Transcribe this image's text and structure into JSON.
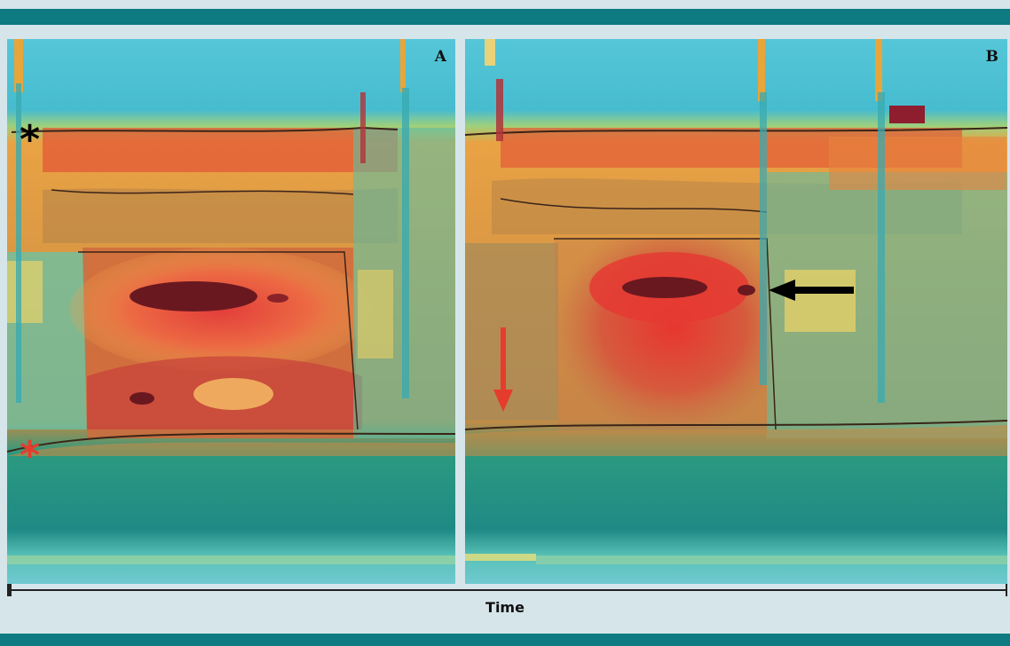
{
  "panels": [
    {
      "id": "A",
      "label": "A"
    },
    {
      "id": "B",
      "label": "B"
    }
  ],
  "axis": {
    "label": "Time"
  },
  "annotations": {
    "asterisk_black": "*",
    "asterisk_red": "*"
  },
  "colors": {
    "band": "#0e7a82",
    "background": "#d6e5ea",
    "cyan_top": "#4ec3d6",
    "teal_bottom": "#1d8f86",
    "pressure_high": "#e3403c",
    "pressure_peak": "#6a1820",
    "pressure_mid": "#f0a04a",
    "arrow_black": "#000000",
    "arrow_red": "#e63c2e"
  }
}
